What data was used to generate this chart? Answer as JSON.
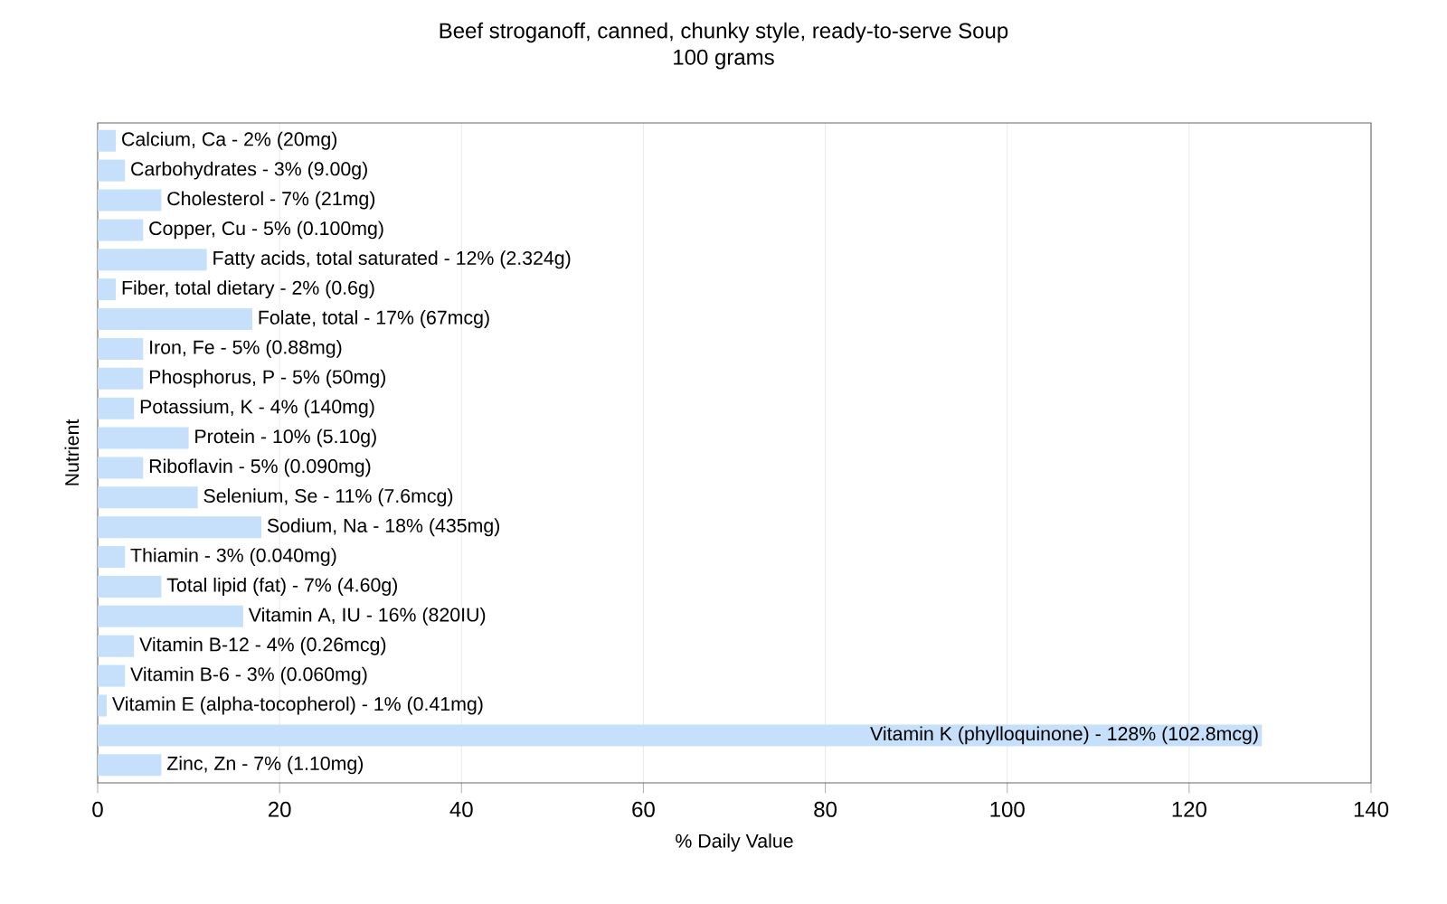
{
  "chart_data": {
    "type": "bar",
    "orientation": "horizontal",
    "title": "Beef stroganoff, canned, chunky style, ready-to-serve Soup",
    "subtitle": "100 grams",
    "xlabel": "% Daily Value",
    "ylabel": "Nutrient",
    "categories": [
      "Calcium, Ca - 2% (20mg)",
      "Carbohydrates - 3% (9.00g)",
      "Cholesterol - 7% (21mg)",
      "Copper, Cu - 5% (0.100mg)",
      "Fatty acids, total saturated - 12% (2.324g)",
      "Fiber, total dietary - 2% (0.6g)",
      "Folate, total - 17% (67mcg)",
      "Iron, Fe - 5% (0.88mg)",
      "Phosphorus, P - 5% (50mg)",
      "Potassium, K - 4% (140mg)",
      "Protein - 10% (5.10g)",
      "Riboflavin - 5% (0.090mg)",
      "Selenium, Se - 11% (7.6mcg)",
      "Sodium, Na - 18% (435mg)",
      "Thiamin - 3% (0.040mg)",
      "Total lipid (fat) - 7% (4.60g)",
      "Vitamin A, IU - 16% (820IU)",
      "Vitamin B-12 - 4% (0.26mcg)",
      "Vitamin B-6 - 3% (0.060mg)",
      "Vitamin E (alpha-tocopherol) - 1% (0.41mg)",
      "Vitamin K (phylloquinone) - 128% (102.8mcg)",
      "Zinc, Zn - 7% (1.10mg)"
    ],
    "values": [
      2,
      3,
      7,
      5,
      12,
      2,
      17,
      5,
      5,
      4,
      10,
      5,
      11,
      18,
      3,
      7,
      16,
      4,
      3,
      1,
      128,
      7
    ],
    "color": "#c6e0fb",
    "xlim": [
      0,
      140
    ],
    "xticks": [
      0,
      20,
      40,
      60,
      80,
      100,
      120,
      140
    ],
    "grid": "x",
    "tick_labels": "x"
  }
}
